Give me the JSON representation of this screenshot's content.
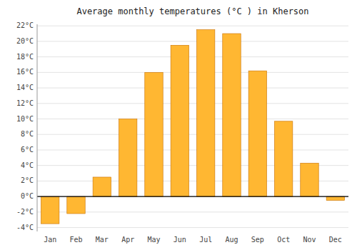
{
  "chart_data": {
    "type": "bar",
    "title": "Average monthly temperatures (°C ) in Kherson",
    "categories": [
      "Jan",
      "Feb",
      "Mar",
      "Apr",
      "May",
      "Jun",
      "Jul",
      "Aug",
      "Sep",
      "Oct",
      "Nov",
      "Dec"
    ],
    "values": [
      -3.5,
      -2.2,
      2.5,
      10.0,
      16.0,
      19.5,
      21.5,
      21.0,
      16.2,
      9.7,
      4.3,
      -0.5
    ],
    "color": "#FFB732",
    "ylim": [
      -4.5,
      22.2
    ],
    "yticks": [
      {
        "value": -4,
        "label": "-4°C"
      },
      {
        "value": -2,
        "label": "-2°C"
      },
      {
        "value": 0,
        "label": "0°C"
      },
      {
        "value": 2,
        "label": "2°C"
      },
      {
        "value": 4,
        "label": "4°C"
      },
      {
        "value": 6,
        "label": "6°C"
      },
      {
        "value": 8,
        "label": "8°C"
      },
      {
        "value": 10,
        "label": "10°C"
      },
      {
        "value": 12,
        "label": "12°C"
      },
      {
        "value": 14,
        "label": "14°C"
      },
      {
        "value": 16,
        "label": "16°C"
      },
      {
        "value": 18,
        "label": "18°C"
      },
      {
        "value": 20,
        "label": "20°C"
      },
      {
        "value": 22,
        "label": "22°C"
      }
    ],
    "grid": true
  }
}
